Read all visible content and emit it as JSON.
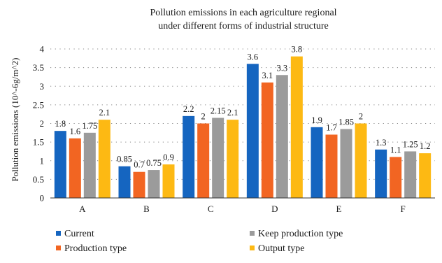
{
  "chart_data": {
    "type": "bar",
    "title": "Pollution emissions in each agriculture regional under different forms of industrial structure",
    "title_lines": [
      "Pollution emissions in each agriculture regional",
      "under different forms of industrial structure"
    ],
    "xlabel": "",
    "ylabel": "Pollution emissions (10^-6g/m^2)",
    "ylim": [
      0,
      4
    ],
    "yticks": [
      0,
      0.5,
      1,
      1.5,
      2,
      2.5,
      3,
      3.5,
      4
    ],
    "categories": [
      "A",
      "B",
      "C",
      "D",
      "E",
      "F"
    ],
    "grid": "dotted horizontal",
    "legend_position": "bottom",
    "series": [
      {
        "name": "Current",
        "color": "#1565c0",
        "values": [
          1.8,
          0.85,
          2.2,
          3.6,
          1.9,
          1.3
        ]
      },
      {
        "name": "Production type",
        "color": "#f26522",
        "values": [
          1.6,
          0.7,
          2,
          3.1,
          1.7,
          1.1
        ]
      },
      {
        "name": "Keep production type",
        "color": "#9b9b9b",
        "values": [
          1.75,
          0.75,
          2.15,
          3.3,
          1.85,
          1.25
        ]
      },
      {
        "name": "Output type",
        "color": "#fdb913",
        "values": [
          2.1,
          0.9,
          2.1,
          3.8,
          2,
          1.2
        ]
      }
    ]
  }
}
